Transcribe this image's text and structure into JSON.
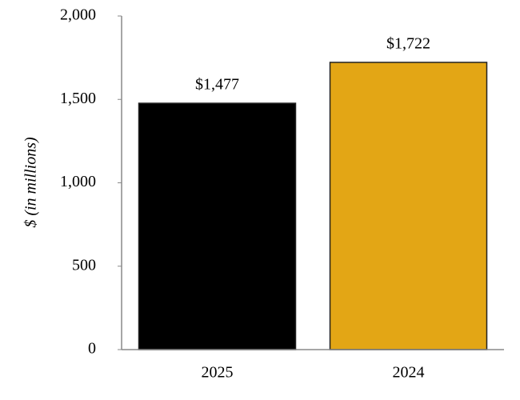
{
  "chart_data": {
    "type": "bar",
    "categories": [
      "2025",
      "2024"
    ],
    "values": [
      1477,
      1722
    ],
    "value_labels": [
      "$1,477",
      "$1,722"
    ],
    "colors": [
      "#000000",
      "#e3a615"
    ],
    "y_label": "$ (in millions)",
    "ylim": [
      0,
      2000
    ],
    "yticks": [
      0,
      500,
      {
        "value": 1000,
        "label": "1,000"
      },
      {
        "value": 1500,
        "label": "1,500"
      },
      {
        "value": 2000,
        "label": "2,000"
      }
    ]
  }
}
